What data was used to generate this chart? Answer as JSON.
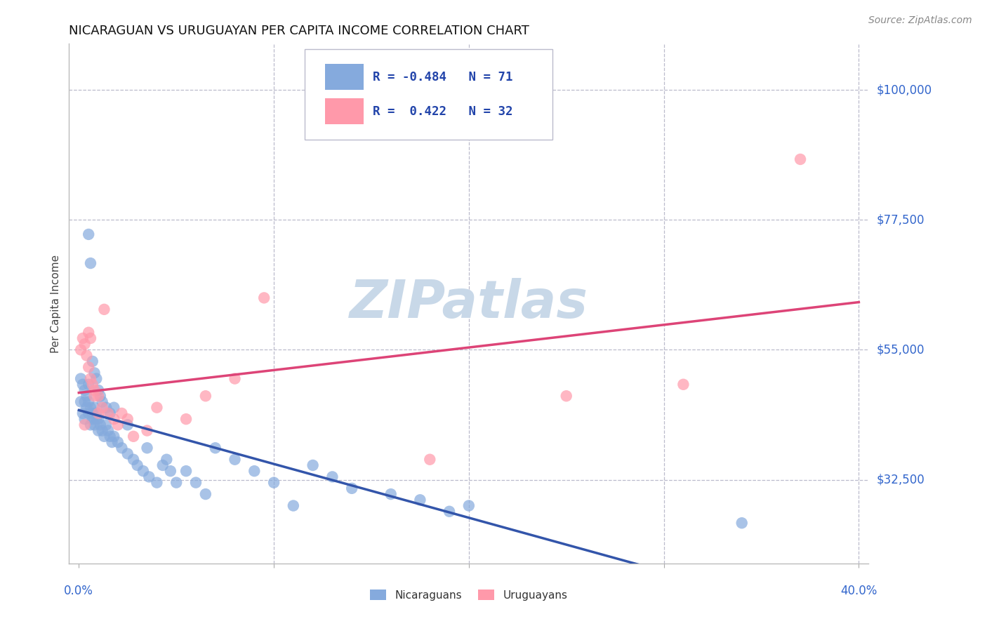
{
  "title": "NICARAGUAN VS URUGUAYAN PER CAPITA INCOME CORRELATION CHART",
  "source": "Source: ZipAtlas.com",
  "ylabel": "Per Capita Income",
  "ytick_labels": [
    "$100,000",
    "$77,500",
    "$55,000",
    "$32,500"
  ],
  "ytick_values": [
    100000,
    77500,
    55000,
    32500
  ],
  "ymin": 18000,
  "ymax": 108000,
  "xmin": -0.005,
  "xmax": 0.405,
  "blue_R": "-0.484",
  "blue_N": "71",
  "pink_R": "0.422",
  "pink_N": "32",
  "blue_color": "#85AADD",
  "pink_color": "#FF99AA",
  "blue_line_color": "#3355AA",
  "pink_line_color": "#DD4477",
  "watermark_color": "#C8D8E8",
  "legend_label_blue": "Nicaraguans",
  "legend_label_pink": "Uruguayans",
  "blue_points_x": [
    0.001,
    0.001,
    0.002,
    0.002,
    0.003,
    0.003,
    0.003,
    0.004,
    0.004,
    0.005,
    0.005,
    0.005,
    0.006,
    0.006,
    0.007,
    0.007,
    0.008,
    0.008,
    0.009,
    0.009,
    0.01,
    0.01,
    0.011,
    0.012,
    0.013,
    0.014,
    0.015,
    0.016,
    0.017,
    0.018,
    0.02,
    0.022,
    0.025,
    0.028,
    0.03,
    0.033,
    0.036,
    0.04,
    0.043,
    0.047,
    0.05,
    0.055,
    0.06,
    0.065,
    0.07,
    0.08,
    0.09,
    0.1,
    0.11,
    0.12,
    0.13,
    0.14,
    0.16,
    0.175,
    0.19,
    0.005,
    0.006,
    0.007,
    0.008,
    0.009,
    0.01,
    0.011,
    0.012,
    0.014,
    0.016,
    0.018,
    0.025,
    0.035,
    0.045,
    0.2,
    0.34
  ],
  "blue_points_y": [
    50000,
    46000,
    49000,
    44000,
    48000,
    46000,
    43000,
    47000,
    45000,
    46000,
    44000,
    49000,
    45000,
    42000,
    44000,
    43000,
    45000,
    42000,
    44000,
    43000,
    43000,
    41000,
    42000,
    41000,
    40000,
    42000,
    41000,
    40000,
    39000,
    40000,
    39000,
    38000,
    37000,
    36000,
    35000,
    34000,
    33000,
    32000,
    35000,
    34000,
    32000,
    34000,
    32000,
    30000,
    38000,
    36000,
    34000,
    32000,
    28000,
    35000,
    33000,
    31000,
    30000,
    29000,
    27000,
    75000,
    70000,
    53000,
    51000,
    50000,
    48000,
    47000,
    46000,
    45000,
    44000,
    45000,
    42000,
    38000,
    36000,
    28000,
    25000
  ],
  "pink_points_x": [
    0.001,
    0.002,
    0.003,
    0.004,
    0.005,
    0.005,
    0.006,
    0.006,
    0.007,
    0.008,
    0.008,
    0.01,
    0.01,
    0.012,
    0.013,
    0.015,
    0.018,
    0.02,
    0.022,
    0.025,
    0.028,
    0.035,
    0.04,
    0.055,
    0.065,
    0.08,
    0.095,
    0.18,
    0.25,
    0.31,
    0.37,
    0.003
  ],
  "pink_points_y": [
    55000,
    57000,
    56000,
    54000,
    58000,
    52000,
    57000,
    50000,
    49000,
    48000,
    47000,
    47000,
    44000,
    45000,
    62000,
    44000,
    43000,
    42000,
    44000,
    43000,
    40000,
    41000,
    45000,
    43000,
    47000,
    50000,
    64000,
    36000,
    47000,
    49000,
    88000,
    42000
  ]
}
